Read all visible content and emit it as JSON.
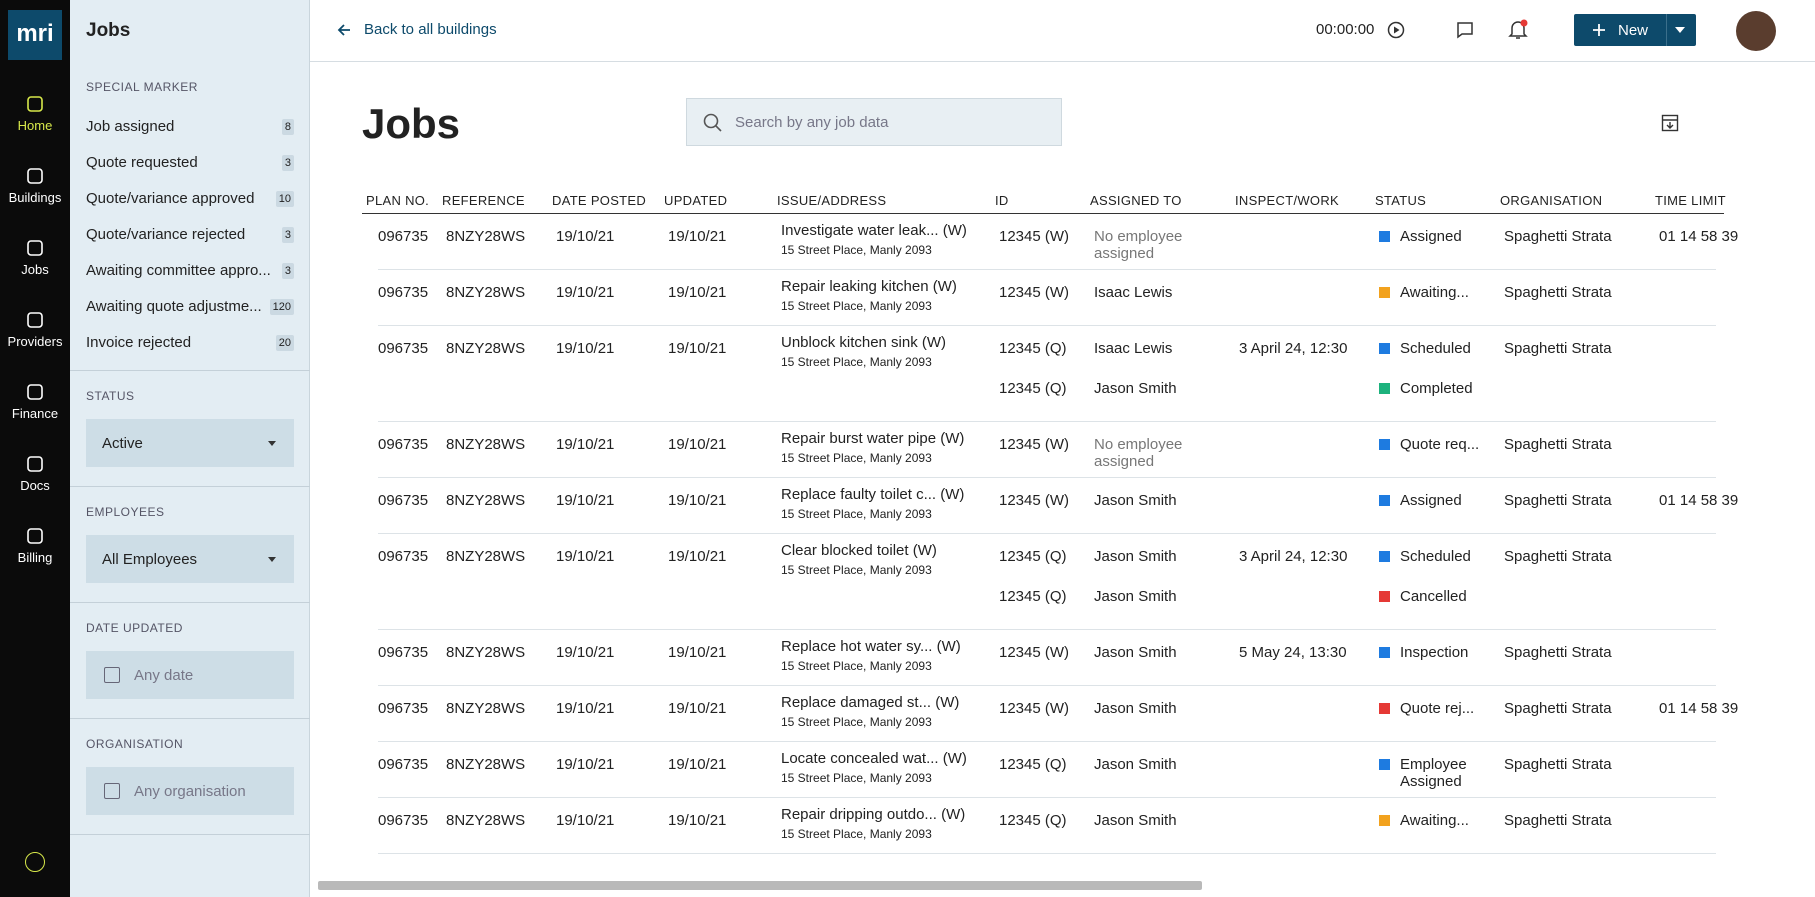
{
  "logo": "mri",
  "nav": [
    "Home",
    "Buildings",
    "Jobs",
    "Providers",
    "Finance",
    "Docs",
    "Billing"
  ],
  "sidebar": {
    "title": "Jobs",
    "special_marker": {
      "label": "SPECIAL MARKER",
      "items": [
        {
          "name": "Job assigned",
          "count": 8
        },
        {
          "name": "Quote requested",
          "count": 3
        },
        {
          "name": "Quote/variance approved",
          "count": 10
        },
        {
          "name": "Quote/variance rejected",
          "count": 3
        },
        {
          "name": "Awaiting committee appro...",
          "count": 3
        },
        {
          "name": "Awaiting quote adjustme...",
          "count": 120
        },
        {
          "name": "Invoice rejected",
          "count": 20
        }
      ]
    },
    "filters": [
      {
        "label": "STATUS",
        "value": "Active",
        "kind": "dropdown"
      },
      {
        "label": "EMPLOYEES",
        "value": "All Employees",
        "kind": "dropdown"
      },
      {
        "label": "DATE UPDATED",
        "value": "Any date",
        "kind": "date"
      },
      {
        "label": "ORGANISATION",
        "value": "Any organisation",
        "kind": "org"
      }
    ]
  },
  "topbar": {
    "back": "Back to all buildings",
    "timer": "00:00:00",
    "new_button": "New"
  },
  "page": {
    "title": "Jobs",
    "search_placeholder": "Search by any job data"
  },
  "table": {
    "columns": [
      "PLAN NO.",
      "REFERENCE",
      "DATE POSTED",
      "UPDATED",
      "ISSUE/ADDRESS",
      "ID",
      "ASSIGNED TO",
      "INSPECT/WORK",
      "STATUS",
      "ORGANISATION",
      "TIME LIMIT"
    ],
    "rows": [
      {
        "plan": "096735",
        "reference": "8NZY28WS",
        "posted": "19/10/21",
        "updated": "19/10/21",
        "issue": "Investigate water leak... (W)",
        "address": "15 Street Place, Manly 2093",
        "items": [
          {
            "id": "12345 (W)",
            "assigned": "No employee assigned",
            "status": "Assigned",
            "color": "#1e7be0"
          }
        ],
        "organisation": "Spaghetti Strata",
        "time_limit": "01 14 58 39"
      },
      {
        "plan": "096735",
        "reference": "8NZY28WS",
        "posted": "19/10/21",
        "updated": "19/10/21",
        "issue": "Repair leaking kitchen (W)",
        "address": "15 Street Place, Manly 2093",
        "items": [
          {
            "id": "12345 (W)",
            "assigned": "Isaac Lewis",
            "status": "Awaiting...",
            "color": "#f2a21e"
          }
        ],
        "organisation": "Spaghetti Strata"
      },
      {
        "plan": "096735",
        "reference": "8NZY28WS",
        "posted": "19/10/21",
        "updated": "19/10/21",
        "issue": "Unblock kitchen sink (W)",
        "address": "15 Street Place, Manly 2093",
        "items": [
          {
            "id": "12345 (Q)",
            "assigned": "Isaac Lewis",
            "inspect": "3 April 24, 12:30",
            "status": "Scheduled",
            "color": "#1e7be0"
          },
          {
            "id": "12345 (Q)",
            "assigned": "Jason Smith",
            "status": "Completed",
            "color": "#1db27d"
          }
        ],
        "organisation": "Spaghetti Strata"
      },
      {
        "plan": "096735",
        "reference": "8NZY28WS",
        "posted": "19/10/21",
        "updated": "19/10/21",
        "issue": "Repair burst water pipe (W)",
        "address": "15 Street Place, Manly 2093",
        "items": [
          {
            "id": "12345 (W)",
            "assigned": "No employee assigned",
            "status": "Quote req...",
            "color": "#1e7be0"
          }
        ],
        "organisation": "Spaghetti Strata"
      },
      {
        "plan": "096735",
        "reference": "8NZY28WS",
        "posted": "19/10/21",
        "updated": "19/10/21",
        "issue": "Replace faulty toilet c... (W)",
        "address": "15 Street Place, Manly 2093",
        "items": [
          {
            "id": "12345 (W)",
            "assigned": "Jason Smith",
            "status": "Assigned",
            "color": "#1e7be0"
          }
        ],
        "organisation": "Spaghetti Strata",
        "time_limit": "01 14 58 39"
      },
      {
        "plan": "096735",
        "reference": "8NZY28WS",
        "posted": "19/10/21",
        "updated": "19/10/21",
        "issue": "Clear blocked toilet (W)",
        "address": "15 Street Place, Manly 2093",
        "items": [
          {
            "id": "12345 (Q)",
            "assigned": "Jason Smith",
            "inspect": "3 April 24, 12:30",
            "status": "Scheduled",
            "color": "#1e7be0"
          },
          {
            "id": "12345 (Q)",
            "assigned": "Jason Smith",
            "status": "Cancelled",
            "color": "#e53935"
          }
        ],
        "organisation": "Spaghetti Strata"
      },
      {
        "plan": "096735",
        "reference": "8NZY28WS",
        "posted": "19/10/21",
        "updated": "19/10/21",
        "issue": "Replace hot water sy... (W)",
        "address": "15 Street Place, Manly 2093",
        "items": [
          {
            "id": "12345 (W)",
            "assigned": "Jason Smith",
            "inspect": "5 May 24, 13:30",
            "status": "Inspection",
            "color": "#1e7be0"
          }
        ],
        "organisation": "Spaghetti Strata"
      },
      {
        "plan": "096735",
        "reference": "8NZY28WS",
        "posted": "19/10/21",
        "updated": "19/10/21",
        "issue": "Replace damaged st... (W)",
        "address": "15 Street Place, Manly 2093",
        "items": [
          {
            "id": "12345 (W)",
            "assigned": "Jason Smith",
            "status": "Quote rej...",
            "color": "#e53935"
          }
        ],
        "organisation": "Spaghetti Strata",
        "time_limit": "01 14 58 39"
      },
      {
        "plan": "096735",
        "reference": "8NZY28WS",
        "posted": "19/10/21",
        "updated": "19/10/21",
        "issue": "Locate concealed wat... (W)",
        "address": "15 Street Place, Manly 2093",
        "items": [
          {
            "id": "12345 (Q)",
            "assigned": "Jason Smith",
            "status": "Employee Assigned",
            "color": "#1e7be0"
          }
        ],
        "organisation": "Spaghetti Strata"
      },
      {
        "plan": "096735",
        "reference": "8NZY28WS",
        "posted": "19/10/21",
        "updated": "19/10/21",
        "issue": "Repair dripping outdo... (W)",
        "address": "15 Street Place, Manly 2093",
        "items": [
          {
            "id": "12345 (Q)",
            "assigned": "Jason Smith",
            "status": "Awaiting...",
            "color": "#f2a21e"
          }
        ],
        "organisation": "Spaghetti Strata"
      }
    ]
  }
}
